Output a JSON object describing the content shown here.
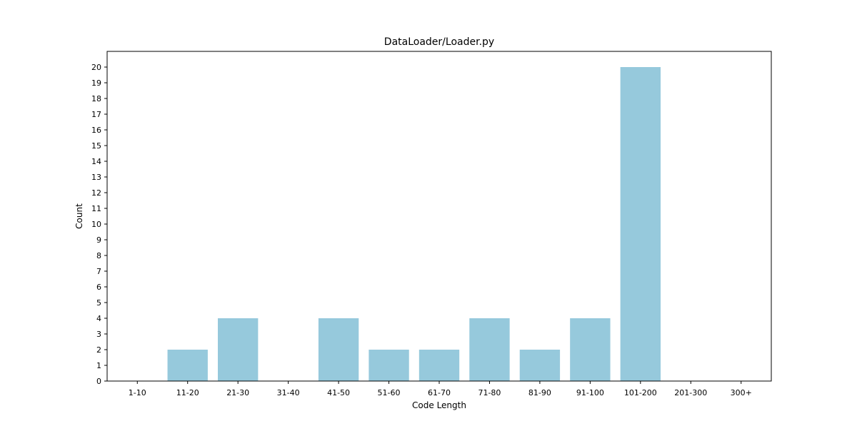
{
  "chart_data": {
    "type": "bar",
    "title": "DataLoader/Loader.py",
    "xlabel": "Code Length",
    "ylabel": "Count",
    "categories": [
      "1-10",
      "11-20",
      "21-30",
      "31-40",
      "41-50",
      "51-60",
      "61-70",
      "71-80",
      "81-90",
      "91-100",
      "101-200",
      "201-300",
      "300+"
    ],
    "values": [
      0,
      2,
      4,
      0,
      4,
      2,
      2,
      4,
      2,
      4,
      20,
      0,
      0
    ],
    "ylim": [
      0,
      20
    ],
    "yticks": [
      0,
      1,
      2,
      3,
      4,
      5,
      6,
      7,
      8,
      9,
      10,
      11,
      12,
      13,
      14,
      15,
      16,
      17,
      18,
      19,
      20
    ],
    "grid": false,
    "bar_color": "#96c9dc"
  }
}
